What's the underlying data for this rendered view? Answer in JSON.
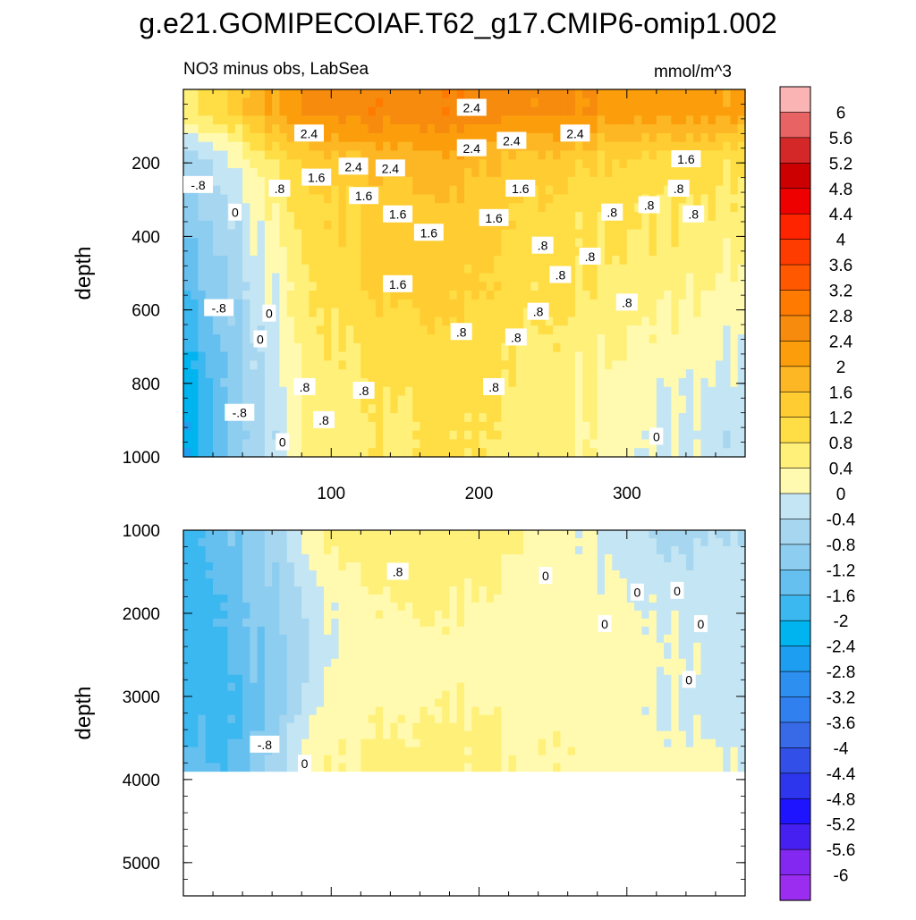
{
  "title": "g.e21.GOMIPECOIAF.T62_g17.CMIP6-omip1.002",
  "subtitle_left": "NO3 minus obs, LabSea",
  "subtitle_right": "mmol/m^3",
  "chart_data": [
    {
      "type": "heatmap",
      "panel": "upper",
      "ylabel": "depth",
      "xlabel": "",
      "xlim": [
        0,
        380
      ],
      "ylim": [
        0,
        1000
      ],
      "y_reversed": true,
      "x_ticks": [
        100,
        200,
        300
      ],
      "x_tick_labels": [
        "100",
        "200",
        "300"
      ],
      "y_ticks": [
        200,
        400,
        600,
        800,
        1000
      ],
      "y_tick_labels": [
        "200",
        "400",
        "600",
        "800",
        "1000"
      ],
      "columns": [
        {
          "x": 5,
          "v": [
            0.8,
            -0.6,
            -0.9,
            -1.2,
            -1.5,
            -1.8,
            -2.2,
            -2.3
          ]
        },
        {
          "x": 25,
          "v": [
            1.0,
            -0.2,
            -0.6,
            -0.8,
            -1.0,
            -1.2,
            -1.3,
            -1.5
          ]
        },
        {
          "x": 45,
          "v": [
            1.6,
            0.3,
            0.0,
            -0.2,
            -0.4,
            -0.5,
            -0.7,
            -0.8
          ]
        },
        {
          "x": 65,
          "v": [
            2.1,
            1.0,
            0.6,
            0.3,
            0.1,
            0.0,
            -0.1,
            -0.2
          ]
        },
        {
          "x": 85,
          "v": [
            2.4,
            1.2,
            1.0,
            0.9,
            0.7,
            0.6,
            0.5,
            0.5
          ]
        },
        {
          "x": 105,
          "v": [
            2.6,
            1.5,
            1.2,
            1.1,
            1.0,
            0.8,
            0.7,
            0.6
          ]
        },
        {
          "x": 125,
          "v": [
            2.7,
            1.7,
            1.3,
            1.3,
            1.2,
            1.0,
            0.8,
            0.7
          ]
        },
        {
          "x": 145,
          "v": [
            2.7,
            1.8,
            1.5,
            1.4,
            1.3,
            1.1,
            0.9,
            0.8
          ]
        },
        {
          "x": 165,
          "v": [
            2.8,
            1.9,
            1.6,
            1.5,
            1.4,
            1.2,
            1.0,
            0.9
          ]
        },
        {
          "x": 185,
          "v": [
            2.7,
            1.8,
            1.5,
            1.4,
            1.3,
            1.1,
            1.0,
            0.9
          ]
        },
        {
          "x": 205,
          "v": [
            2.6,
            1.7,
            1.4,
            1.3,
            1.2,
            1.0,
            0.9,
            0.8
          ]
        },
        {
          "x": 225,
          "v": [
            2.6,
            1.6,
            1.3,
            1.1,
            1.0,
            0.9,
            0.8,
            0.6
          ]
        },
        {
          "x": 245,
          "v": [
            2.5,
            1.5,
            1.2,
            1.0,
            0.9,
            0.8,
            0.7,
            0.6
          ]
        },
        {
          "x": 265,
          "v": [
            2.4,
            1.3,
            1.0,
            0.9,
            0.8,
            0.6,
            0.5,
            0.4
          ]
        },
        {
          "x": 285,
          "v": [
            2.3,
            1.2,
            0.9,
            0.8,
            0.7,
            0.5,
            0.3,
            0.2
          ]
        },
        {
          "x": 305,
          "v": [
            2.3,
            1.2,
            0.9,
            0.8,
            0.6,
            0.4,
            0.2,
            0.1
          ]
        },
        {
          "x": 325,
          "v": [
            2.2,
            1.1,
            0.8,
            0.7,
            0.5,
            0.3,
            0.1,
            0.0
          ]
        },
        {
          "x": 345,
          "v": [
            2.2,
            1.0,
            0.8,
            0.6,
            0.4,
            0.2,
            0.0,
            -0.1
          ]
        },
        {
          "x": 365,
          "v": [
            2.1,
            0.9,
            0.7,
            0.5,
            0.3,
            0.1,
            -0.1,
            -0.3
          ]
        }
      ],
      "depths": [
        60,
        190,
        310,
        430,
        550,
        670,
        800,
        930
      ],
      "contour_labels": [
        {
          "text": "2.4",
          "x": 85,
          "y": 120
        },
        {
          "text": "2.4",
          "x": 195,
          "y": 50
        },
        {
          "text": "2.4",
          "x": 195,
          "y": 160
        },
        {
          "text": "2.4",
          "x": 222,
          "y": 140
        },
        {
          "text": "2.4",
          "x": 265,
          "y": 120
        },
        {
          "text": "2.4",
          "x": 115,
          "y": 210
        },
        {
          "text": "2.4",
          "x": 140,
          "y": 215
        },
        {
          "text": "1.6",
          "x": 90,
          "y": 240
        },
        {
          "text": "1.6",
          "x": 122,
          "y": 290
        },
        {
          "text": "1.6",
          "x": 145,
          "y": 340
        },
        {
          "text": "1.6",
          "x": 166,
          "y": 390
        },
        {
          "text": "1.6",
          "x": 145,
          "y": 530
        },
        {
          "text": "1.6",
          "x": 210,
          "y": 350
        },
        {
          "text": "1.6",
          "x": 228,
          "y": 270
        },
        {
          "text": "1.6",
          "x": 340,
          "y": 190
        },
        {
          "text": "-.8",
          "x": 10,
          "y": 260
        },
        {
          "text": "0",
          "x": 35,
          "y": 335
        },
        {
          "text": ".8",
          "x": 65,
          "y": 270
        },
        {
          "text": ".8",
          "x": 243,
          "y": 425
        },
        {
          "text": ".8",
          "x": 255,
          "y": 505
        },
        {
          "text": ".8",
          "x": 275,
          "y": 455
        },
        {
          "text": ".8",
          "x": 290,
          "y": 335
        },
        {
          "text": ".8",
          "x": 315,
          "y": 315
        },
        {
          "text": ".8",
          "x": 335,
          "y": 270
        },
        {
          "text": ".8",
          "x": 345,
          "y": 340
        },
        {
          "text": ".8",
          "x": 240,
          "y": 605
        },
        {
          "text": ".8",
          "x": 300,
          "y": 580
        },
        {
          "text": "-.8",
          "x": 24,
          "y": 595
        },
        {
          "text": "0",
          "x": 58,
          "y": 610
        },
        {
          "text": "0",
          "x": 52,
          "y": 680
        },
        {
          "text": ".8",
          "x": 188,
          "y": 660
        },
        {
          "text": ".8",
          "x": 225,
          "y": 675
        },
        {
          "text": ".8",
          "x": 82,
          "y": 810
        },
        {
          "text": ".8",
          "x": 122,
          "y": 820
        },
        {
          "text": ".8",
          "x": 210,
          "y": 810
        },
        {
          "text": "-.8",
          "x": 38,
          "y": 880
        },
        {
          "text": ".8",
          "x": 95,
          "y": 900
        },
        {
          "text": "0",
          "x": 67,
          "y": 960
        },
        {
          "text": "0",
          "x": 320,
          "y": 945
        }
      ]
    },
    {
      "type": "heatmap",
      "panel": "lower",
      "ylabel": "depth",
      "xlabel": "",
      "xlim": [
        0,
        380
      ],
      "ylim": [
        1000,
        5400
      ],
      "y_reversed": true,
      "data_bottom": 3900,
      "y_ticks": [
        1000,
        2000,
        3000,
        4000,
        5000
      ],
      "y_tick_labels": [
        "1000",
        "2000",
        "3000",
        "4000",
        "5000"
      ],
      "columns": [
        {
          "x": 5,
          "v": [
            -1.8,
            -1.8,
            -1.8,
            -1.6,
            -1.5
          ]
        },
        {
          "x": 25,
          "v": [
            -1.4,
            -1.6,
            -1.7,
            -1.9,
            -1.7
          ]
        },
        {
          "x": 45,
          "v": [
            -1.0,
            -1.2,
            -1.3,
            -1.4,
            -1.3
          ]
        },
        {
          "x": 65,
          "v": [
            -0.6,
            -0.8,
            -0.9,
            -0.9,
            -0.6
          ]
        },
        {
          "x": 85,
          "v": [
            0.1,
            -0.3,
            -0.5,
            -0.2,
            0.2
          ]
        },
        {
          "x": 105,
          "v": [
            0.6,
            0.1,
            0.1,
            0.2,
            0.4
          ]
        },
        {
          "x": 125,
          "v": [
            0.7,
            0.3,
            0.2,
            0.3,
            0.4
          ]
        },
        {
          "x": 145,
          "v": [
            0.8,
            0.5,
            0.3,
            0.4,
            0.5
          ]
        },
        {
          "x": 165,
          "v": [
            0.8,
            0.5,
            0.3,
            0.4,
            0.5
          ]
        },
        {
          "x": 185,
          "v": [
            0.7,
            0.4,
            0.2,
            0.4,
            0.5
          ]
        },
        {
          "x": 205,
          "v": [
            0.6,
            0.4,
            0.3,
            0.4,
            0.5
          ]
        },
        {
          "x": 225,
          "v": [
            0.5,
            0.3,
            0.2,
            0.3,
            0.4
          ]
        },
        {
          "x": 245,
          "v": [
            0.3,
            0.2,
            0.1,
            0.3,
            0.4
          ]
        },
        {
          "x": 265,
          "v": [
            0.1,
            0.2,
            0.2,
            0.3,
            0.3
          ]
        },
        {
          "x": 285,
          "v": [
            -0.1,
            0.1,
            0.2,
            0.2,
            0.2
          ]
        },
        {
          "x": 305,
          "v": [
            -0.3,
            0.0,
            0.1,
            0.1,
            0.1
          ]
        },
        {
          "x": 325,
          "v": [
            -0.5,
            -0.1,
            0.1,
            0.0,
            0.1
          ]
        },
        {
          "x": 345,
          "v": [
            -0.5,
            -0.2,
            0.0,
            -0.1,
            0.1
          ]
        },
        {
          "x": 365,
          "v": [
            -0.4,
            -0.1,
            -0.2,
            -0.3,
            0.0
          ]
        }
      ],
      "depths": [
        1100,
        1800,
        2500,
        3100,
        3700
      ],
      "contour_labels": [
        {
          "text": ".8",
          "x": 145,
          "y": 1500
        },
        {
          "text": "0",
          "x": 245,
          "y": 1550
        },
        {
          "text": "0",
          "x": 307,
          "y": 1750
        },
        {
          "text": "0",
          "x": 334,
          "y": 1730
        },
        {
          "text": "0",
          "x": 285,
          "y": 2130
        },
        {
          "text": "0",
          "x": 350,
          "y": 2130
        },
        {
          "text": "0",
          "x": 342,
          "y": 2800
        },
        {
          "text": "-.8",
          "x": 55,
          "y": 3580
        },
        {
          "text": "0",
          "x": 82,
          "y": 3810
        }
      ]
    }
  ],
  "colorbar": {
    "labels": [
      "6",
      "5.6",
      "5.2",
      "4.8",
      "4.4",
      "4",
      "3.6",
      "3.2",
      "2.8",
      "2.4",
      "2",
      "1.6",
      "1.2",
      "0.8",
      "0.4",
      "0",
      "-0.4",
      "-0.8",
      "-1.2",
      "-1.6",
      "-2",
      "-2.4",
      "-2.8",
      "-3.2",
      "-3.6",
      "-4",
      "-4.4",
      "-4.8",
      "-5.2",
      "-5.6",
      "-6"
    ],
    "colors": [
      "#fbb4b4",
      "#e86464",
      "#d42828",
      "#cc0000",
      "#ee0000",
      "#ff2400",
      "#ff3c00",
      "#ff5800",
      "#ff7a00",
      "#f68b0e",
      "#fc9e0c",
      "#fdb724",
      "#ffcc32",
      "#ffdd44",
      "#fff07a",
      "#fffaaf",
      "#c4e5f3",
      "#a7d7f0",
      "#8dcdf0",
      "#66c0ef",
      "#3cb8f0",
      "#00b4f0",
      "#1e9ef0",
      "#2d8ff0",
      "#3080f0",
      "#386ae8",
      "#3250e8",
      "#2d36ec",
      "#1e14ff",
      "#4620f0",
      "#8228f0",
      "#9a2df0"
    ]
  }
}
